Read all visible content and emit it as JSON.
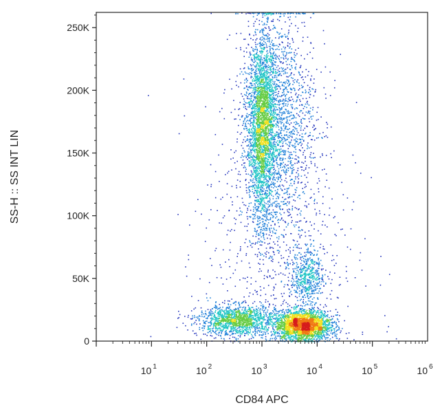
{
  "chart_data": {
    "type": "scatter",
    "xlabel": "CD84 APC",
    "ylabel": "SS-H :: SS INT LIN",
    "x_scale": "log",
    "xlim": [
      1,
      1000000
    ],
    "ylim": [
      0,
      262144
    ],
    "x_ticks": [
      {
        "value": 10,
        "base": "10",
        "exp": "1"
      },
      {
        "value": 100,
        "base": "10",
        "exp": "2"
      },
      {
        "value": 1000,
        "base": "10",
        "exp": "3"
      },
      {
        "value": 10000,
        "base": "10",
        "exp": "4"
      },
      {
        "value": 100000,
        "base": "10",
        "exp": "5"
      },
      {
        "value": 1000000,
        "base": "10",
        "exp": "6"
      }
    ],
    "y_ticks": [
      {
        "value": 0,
        "label": "0"
      },
      {
        "value": 50000,
        "label": "50K"
      },
      {
        "value": 100000,
        "label": "100K"
      },
      {
        "value": 150000,
        "label": "150K"
      },
      {
        "value": 200000,
        "label": "200K"
      },
      {
        "value": 250000,
        "label": "250K"
      }
    ],
    "grid": false,
    "legend": "none",
    "colormap": [
      "#2233bb",
      "#1f7fd8",
      "#22c6c6",
      "#66cc44",
      "#f2e01e",
      "#f07a14",
      "#d61c1c"
    ],
    "populations": [
      {
        "x_center": 1000,
        "x_spread_decades": 0.12,
        "y_center": 170000,
        "y_spread": 38000,
        "count": 2600
      },
      {
        "x_center": 1800,
        "x_spread_decades": 0.35,
        "y_center": 175000,
        "y_spread": 45000,
        "count": 2000
      },
      {
        "x_center": 5500,
        "x_spread_decades": 0.25,
        "y_center": 13000,
        "y_spread": 6000,
        "count": 2600
      },
      {
        "x_center": 350,
        "x_spread_decades": 0.35,
        "y_center": 17000,
        "y_spread": 6000,
        "count": 1400
      },
      {
        "x_center": 6500,
        "x_spread_decades": 0.15,
        "y_center": 52000,
        "y_spread": 10000,
        "count": 500
      },
      {
        "x_center": 2000,
        "x_spread_decades": 0.7,
        "y_center": 70000,
        "y_spread": 60000,
        "count": 700
      }
    ]
  }
}
